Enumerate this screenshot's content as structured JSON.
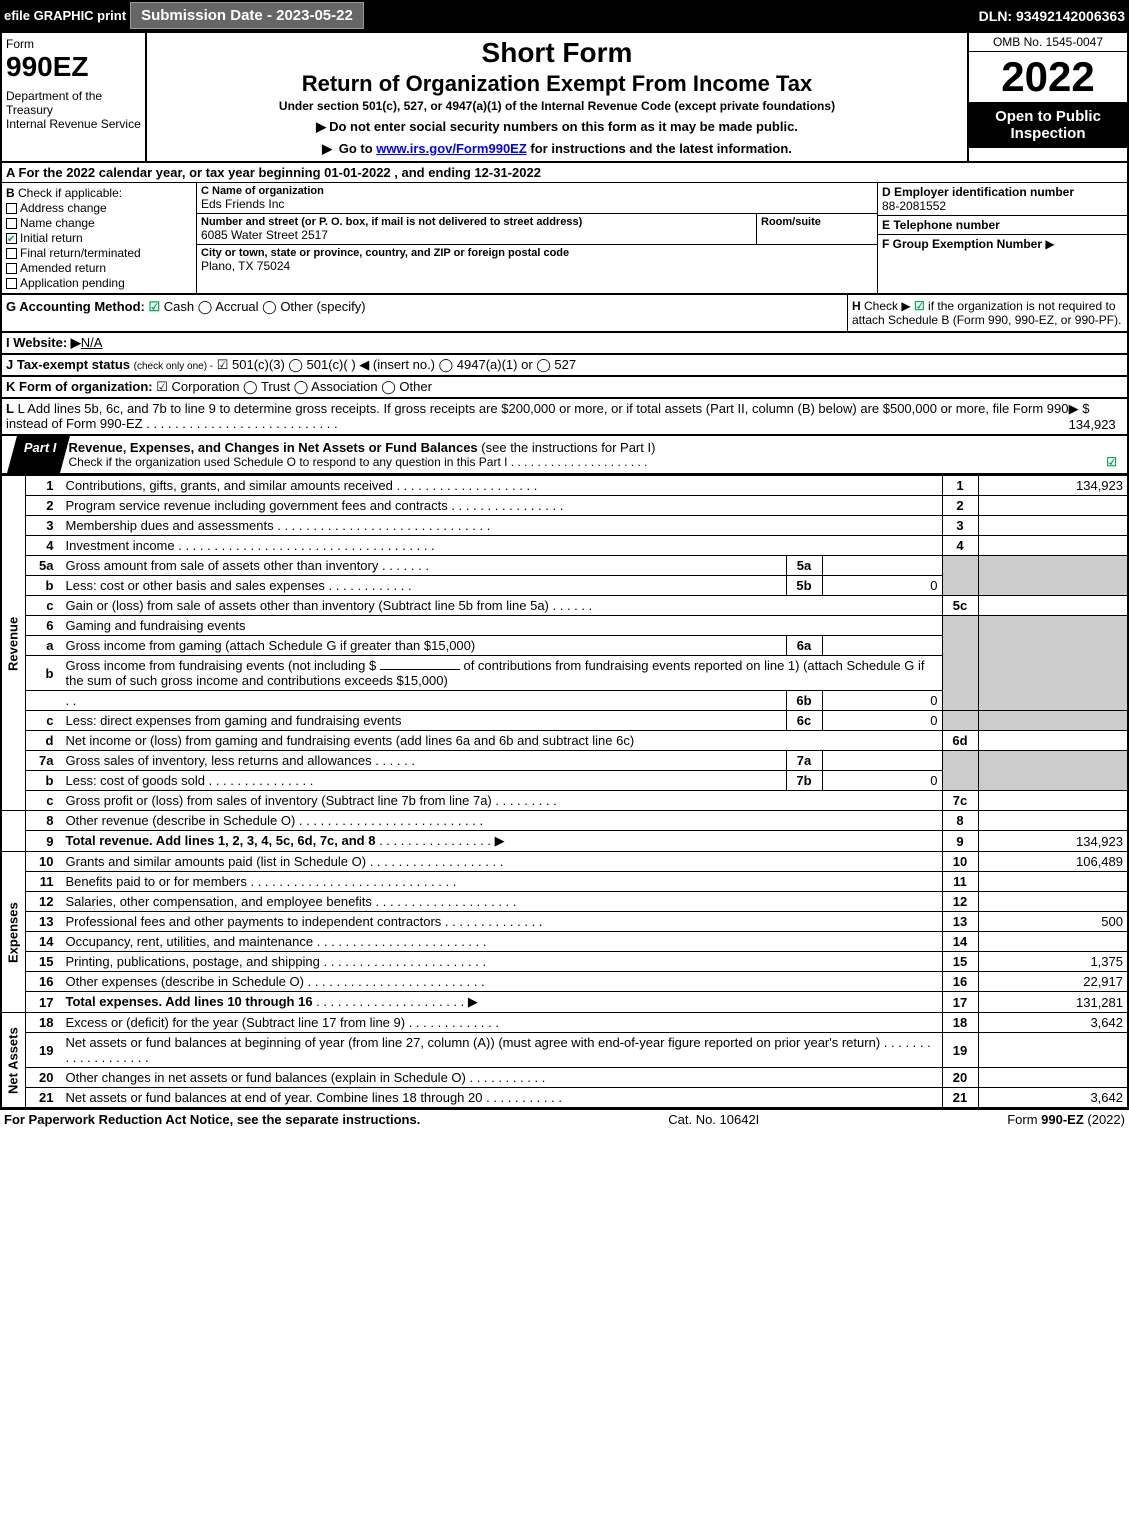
{
  "topbar": {
    "efile": "efile GRAPHIC print",
    "sub_date": "Submission Date - 2023-05-22",
    "dln": "DLN: 93492142006363"
  },
  "header": {
    "form_label": "Form",
    "form_number": "990EZ",
    "dept": "Department of the Treasury\nInternal Revenue Service",
    "short_form": "Short Form",
    "return_title": "Return of Organization Exempt From Income Tax",
    "under_section": "Under section 501(c), 527, or 4947(a)(1) of the Internal Revenue Code (except private foundations)",
    "instr1": "Do not enter social security numbers on this form as it may be made public.",
    "instr2_prefix": "Go to ",
    "instr2_link": "www.irs.gov/Form990EZ",
    "instr2_suffix": " for instructions and the latest information.",
    "omb": "OMB No. 1545-0047",
    "year": "2022",
    "open_public": "Open to Public Inspection"
  },
  "a": "For the 2022 calendar year, or tax year beginning 01-01-2022 , and ending 12-31-2022",
  "b": {
    "label": "Check if applicable:",
    "items": [
      "Address change",
      "Name change",
      "Initial return",
      "Final return/terminated",
      "Amended return",
      "Application pending"
    ],
    "checked_idx": 2
  },
  "c": {
    "name_label": "C Name of organization",
    "name": "Eds Friends Inc",
    "street_label": "Number and street (or P. O. box, if mail is not delivered to street address)",
    "street": "6085 Water Street 2517",
    "room_label": "Room/suite",
    "city_label": "City or town, state or province, country, and ZIP or foreign postal code",
    "city": "Plano, TX  75024"
  },
  "d": {
    "ein_label": "D Employer identification number",
    "ein": "88-2081552",
    "tel_label": "E Telephone number",
    "grp_label": "F Group Exemption Number"
  },
  "g": {
    "label": "G Accounting Method:",
    "opts": [
      "Cash",
      "Accrual",
      "Other (specify)"
    ],
    "checked_idx": 0
  },
  "h": {
    "text1": "Check ▶",
    "text2": "if the organization is not required to attach Schedule B (Form 990, 990-EZ, or 990-PF).",
    "checked": true
  },
  "i": {
    "label": "I Website: ▶",
    "val": "N/A"
  },
  "j": {
    "label": "J Tax-exempt status",
    "sub": "(check only one) -",
    "opts": "☑ 501(c)(3)  ◯ 501(c)(  ) ◀ (insert no.)  ◯ 4947(a)(1) or  ◯ 527"
  },
  "k": {
    "label": "K Form of organization:",
    "opts": "☑ Corporation  ◯ Trust  ◯ Association  ◯ Other"
  },
  "l": {
    "text": "L Add lines 5b, 6c, and 7b to line 9 to determine gross receipts. If gross receipts are $200,000 or more, or if total assets (Part II, column (B) below) are $500,000 or more, file Form 990 instead of Form 990-EZ",
    "amt_prefix": "▶ $ ",
    "amt": "134,923"
  },
  "part1": {
    "label": "Part I",
    "title": "Revenue, Expenses, and Changes in Net Assets or Fund Balances",
    "title_suffix": "(see the instructions for Part I)",
    "sub": "Check if the organization used Schedule O to respond to any question in this Part I",
    "checked": true
  },
  "sections": {
    "revenue": "Revenue",
    "expenses": "Expenses",
    "net_assets": "Net Assets"
  },
  "lines": {
    "1": {
      "d": "Contributions, gifts, grants, and similar amounts received",
      "amt": "134,923"
    },
    "2": {
      "d": "Program service revenue including government fees and contracts"
    },
    "3": {
      "d": "Membership dues and assessments"
    },
    "4": {
      "d": "Investment income"
    },
    "5a": {
      "d": "Gross amount from sale of assets other than inventory",
      "subamt": ""
    },
    "5b": {
      "d": "Less: cost or other basis and sales expenses",
      "subamt": "0"
    },
    "5c": {
      "d": "Gain or (loss) from sale of assets other than inventory (Subtract line 5b from line 5a)"
    },
    "6": {
      "d": "Gaming and fundraising events"
    },
    "6a": {
      "d": "Gross income from gaming (attach Schedule G if greater than $15,000)",
      "subamt": ""
    },
    "6b_pre": "Gross income from fundraising events (not including $",
    "6b_mid": "of contributions from fundraising events reported on line 1) (attach Schedule G if the sum of such gross income and contributions exceeds $15,000)",
    "6b": {
      "subamt": "0"
    },
    "6c": {
      "d": "Less: direct expenses from gaming and fundraising events",
      "subamt": "0"
    },
    "6d": {
      "d": "Net income or (loss) from gaming and fundraising events (add lines 6a and 6b and subtract line 6c)"
    },
    "7a": {
      "d": "Gross sales of inventory, less returns and allowances",
      "subamt": ""
    },
    "7b": {
      "d": "Less: cost of goods sold",
      "subamt": "0"
    },
    "7c": {
      "d": "Gross profit or (loss) from sales of inventory (Subtract line 7b from line 7a)"
    },
    "8": {
      "d": "Other revenue (describe in Schedule O)"
    },
    "9": {
      "d": "Total revenue. Add lines 1, 2, 3, 4, 5c, 6d, 7c, and 8",
      "amt": "134,923",
      "bold": true
    },
    "10": {
      "d": "Grants and similar amounts paid (list in Schedule O)",
      "amt": "106,489"
    },
    "11": {
      "d": "Benefits paid to or for members"
    },
    "12": {
      "d": "Salaries, other compensation, and employee benefits"
    },
    "13": {
      "d": "Professional fees and other payments to independent contractors",
      "amt": "500"
    },
    "14": {
      "d": "Occupancy, rent, utilities, and maintenance"
    },
    "15": {
      "d": "Printing, publications, postage, and shipping",
      "amt": "1,375"
    },
    "16": {
      "d": "Other expenses (describe in Schedule O)",
      "amt": "22,917"
    },
    "17": {
      "d": "Total expenses. Add lines 10 through 16",
      "amt": "131,281",
      "bold": true
    },
    "18": {
      "d": "Excess or (deficit) for the year (Subtract line 17 from line 9)",
      "amt": "3,642"
    },
    "19": {
      "d": "Net assets or fund balances at beginning of year (from line 27, column (A)) (must agree with end-of-year figure reported on prior year's return)"
    },
    "20": {
      "d": "Other changes in net assets or fund balances (explain in Schedule O)"
    },
    "21": {
      "d": "Net assets or fund balances at end of year. Combine lines 18 through 20",
      "amt": "3,642"
    }
  },
  "footer": {
    "left": "For Paperwork Reduction Act Notice, see the separate instructions.",
    "mid": "Cat. No. 10642I",
    "right_prefix": "Form ",
    "right_form": "990-EZ",
    "right_suffix": " (2022)"
  }
}
